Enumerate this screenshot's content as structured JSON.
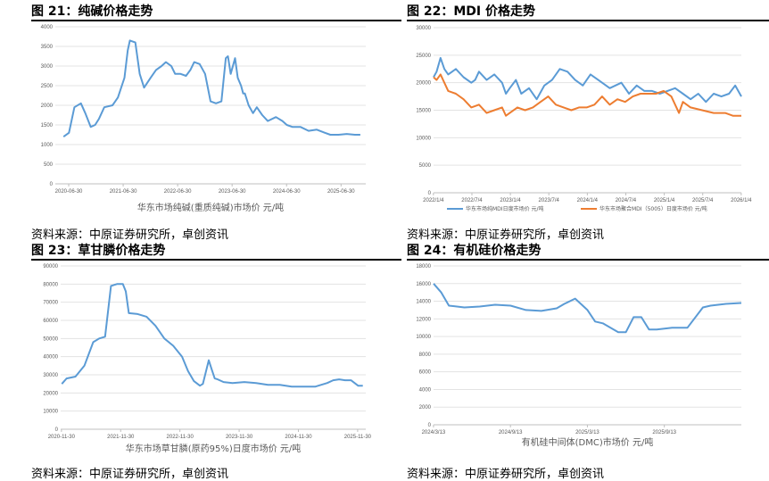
{
  "panels": [
    {
      "title": "图 21：纯碱价格走势",
      "source": "资料来源：中原证券研究所，卓创资讯",
      "caption": "华东市场纯碱(重质纯碱)市场价  元/吨",
      "y_ticks": [
        "0",
        "500",
        "1000",
        "1500",
        "2000",
        "2500",
        "3000",
        "3500",
        "4000"
      ],
      "x_ticks": [
        "2020-06-30",
        "2021-06-30",
        "2022-06-30",
        "2023-06-30",
        "2024-06-30",
        "2025-06-30"
      ]
    },
    {
      "title": "图 22：MDI 价格走势",
      "source": "资料来源：中原证券研究所，卓创资讯",
      "caption": "",
      "y_ticks": [
        "0",
        "5000",
        "10000",
        "15000",
        "20000",
        "25000",
        "30000"
      ],
      "x_ticks": [
        "2022/1/4",
        "2022/7/4",
        "2023/1/4",
        "2023/7/4",
        "2024/1/4",
        "2024/7/4",
        "2025/1/4",
        "2025/7/4",
        "2026/1/4"
      ]
    },
    {
      "title": "图 23：草甘膦价格走势",
      "source": "资料来源：中原证券研究所，卓创资讯",
      "caption": "华东市场草甘膦(原药95%)日度市场价  元/吨",
      "y_ticks": [
        "0",
        "10000",
        "20000",
        "30000",
        "40000",
        "50000",
        "60000",
        "70000",
        "80000",
        "90000"
      ],
      "x_ticks": [
        "2020-11-30",
        "2021-11-30",
        "2022-11-30",
        "2023-11-30",
        "2024-11-30",
        "2025-11-30"
      ]
    },
    {
      "title": "图 24：有机硅价格走势",
      "source": "资料来源：中原证券研究所，卓创资讯",
      "caption": "有机硅中间体(DMC)市场价  元/吨",
      "y_ticks": [
        "0",
        "2000",
        "4000",
        "6000",
        "8000",
        "10000",
        "12000",
        "14000",
        "16000",
        "18000"
      ],
      "x_ticks": [
        "2024/3/13",
        "2024/9/13",
        "2025/3/13",
        "2025/9/13"
      ]
    }
  ],
  "colors": {
    "blue": "#5b9bd5",
    "orange": "#ed7d31"
  },
  "chart_data": [
    {
      "type": "line",
      "title": "",
      "xlabel": "华东市场纯碱(重质纯碱)市场价  元/吨",
      "ylabel": "",
      "x_unit": "year",
      "xlim": [
        2020.25,
        2025.95
      ],
      "ylim": [
        0,
        4000
      ],
      "grid": true,
      "series": [
        {
          "name": "华东市场纯碱(重质纯碱)市场价  元/吨",
          "color": "#5b9bd5",
          "x": [
            2020.4,
            2020.5,
            2020.6,
            2020.72,
            2020.8,
            2020.9,
            2020.98,
            2021.05,
            2021.15,
            2021.3,
            2021.4,
            2021.52,
            2021.58,
            2021.62,
            2021.72,
            2021.8,
            2021.88,
            2022.0,
            2022.1,
            2022.2,
            2022.28,
            2022.38,
            2022.45,
            2022.55,
            2022.65,
            2022.73,
            2022.8,
            2022.9,
            2023.0,
            2023.1,
            2023.2,
            2023.3,
            2023.38,
            2023.42,
            2023.47,
            2023.55,
            2023.6,
            2023.66,
            2023.7,
            2023.73,
            2023.8,
            2023.88,
            2023.95,
            2024.0,
            2024.05,
            2024.15,
            2024.3,
            2024.42,
            2024.5,
            2024.6,
            2024.75,
            2024.9,
            2025.05,
            2025.2,
            2025.3,
            2025.45,
            2025.6,
            2025.75,
            2025.85
          ],
          "y": [
            1200,
            1300,
            1950,
            2050,
            1800,
            1450,
            1500,
            1650,
            1950,
            2000,
            2200,
            2700,
            3400,
            3650,
            3600,
            2800,
            2450,
            2700,
            2900,
            3000,
            3100,
            3000,
            2800,
            2800,
            2750,
            2900,
            3100,
            3050,
            2800,
            2100,
            2050,
            2100,
            3200,
            3250,
            2800,
            3200,
            2700,
            2500,
            2300,
            2300,
            2000,
            1800,
            1950,
            1850,
            1750,
            1600,
            1700,
            1600,
            1500,
            1450,
            1450,
            1350,
            1380,
            1300,
            1250,
            1250,
            1270,
            1250,
            1250
          ]
        }
      ]
    },
    {
      "type": "line",
      "title": "",
      "xlabel": "",
      "ylabel": "",
      "x_unit": "year",
      "xlim": [
        2022.01,
        2026.01
      ],
      "ylim": [
        0,
        30000
      ],
      "grid": true,
      "series": [
        {
          "name": "华东市场纯MDI日度市场价  元/吨",
          "color": "#5b9bd5",
          "x": [
            2022.01,
            2022.05,
            2022.1,
            2022.15,
            2022.2,
            2022.3,
            2022.4,
            2022.5,
            2022.55,
            2022.6,
            2022.7,
            2022.8,
            2022.9,
            2022.95,
            2023.0,
            2023.08,
            2023.15,
            2023.25,
            2023.35,
            2023.45,
            2023.55,
            2023.65,
            2023.75,
            2023.85,
            2023.95,
            2024.05,
            2024.15,
            2024.3,
            2024.45,
            2024.55,
            2024.65,
            2024.75,
            2024.85,
            2024.95,
            2025.05,
            2025.15,
            2025.25,
            2025.35,
            2025.45,
            2025.55,
            2025.65,
            2025.75,
            2025.85,
            2025.93,
            2026.01
          ],
          "y": [
            21000,
            22000,
            24500,
            22500,
            21500,
            22500,
            21000,
            20000,
            20500,
            22000,
            20500,
            21500,
            20000,
            18000,
            19000,
            20500,
            18000,
            19000,
            17000,
            19500,
            20500,
            22500,
            22000,
            20500,
            19500,
            21500,
            20500,
            19000,
            20000,
            18000,
            19500,
            18500,
            18500,
            18000,
            18500,
            19000,
            18000,
            17000,
            18000,
            16500,
            18000,
            17500,
            18000,
            19500,
            17500
          ]
        },
        {
          "name": "华东市场聚合MDI（5005）日度市场价 元/吨",
          "color": "#ed7d31",
          "x": [
            2022.01,
            2022.05,
            2022.1,
            2022.2,
            2022.3,
            2022.4,
            2022.5,
            2022.6,
            2022.7,
            2022.8,
            2022.9,
            2022.95,
            2023.0,
            2023.1,
            2023.2,
            2023.3,
            2023.4,
            2023.5,
            2023.6,
            2023.7,
            2023.8,
            2023.9,
            2024.0,
            2024.1,
            2024.2,
            2024.3,
            2024.4,
            2024.5,
            2024.6,
            2024.7,
            2024.8,
            2024.9,
            2025.0,
            2025.1,
            2025.15,
            2025.2,
            2025.25,
            2025.35,
            2025.5,
            2025.65,
            2025.8,
            2025.9,
            2026.01
          ],
          "y": [
            21000,
            20500,
            21500,
            18500,
            18000,
            17000,
            15500,
            16000,
            14500,
            15000,
            15500,
            14000,
            14500,
            15500,
            15000,
            15500,
            16500,
            17500,
            16000,
            15500,
            15000,
            15500,
            15500,
            16000,
            17500,
            16000,
            17000,
            16500,
            17500,
            18000,
            18000,
            18000,
            18500,
            17500,
            16000,
            14500,
            16500,
            15500,
            15000,
            14500,
            14500,
            14000,
            14000
          ]
        }
      ]
    },
    {
      "type": "line",
      "title": "",
      "xlabel": "华东市场草甘膦(原药95%)日度市场价  元/吨",
      "ylabel": "",
      "x_unit": "year",
      "xlim": [
        2020.9,
        2026.05
      ],
      "ylim": [
        0,
        90000
      ],
      "grid": true,
      "series": [
        {
          "name": "华东市场草甘膦(原药95%)日度市场价  元/吨",
          "color": "#5b9bd5",
          "x": [
            2020.92,
            2021.0,
            2021.15,
            2021.3,
            2021.45,
            2021.55,
            2021.65,
            2021.75,
            2021.85,
            2021.95,
            2022.0,
            2022.05,
            2022.2,
            2022.35,
            2022.5,
            2022.65,
            2022.8,
            2022.95,
            2023.05,
            2023.15,
            2023.25,
            2023.3,
            2023.4,
            2023.45,
            2023.5,
            2023.55,
            2023.65,
            2023.8,
            2024.0,
            2024.2,
            2024.4,
            2024.6,
            2024.8,
            2025.0,
            2025.2,
            2025.4,
            2025.5,
            2025.6,
            2025.7,
            2025.8,
            2025.92,
            2026.0
          ],
          "y": [
            25000,
            28000,
            29000,
            35000,
            48000,
            50000,
            51000,
            79000,
            80000,
            80000,
            76000,
            64000,
            63500,
            62000,
            57000,
            50000,
            46000,
            40000,
            32000,
            26500,
            24000,
            25000,
            38000,
            33000,
            28000,
            27500,
            26000,
            25500,
            26000,
            25500,
            24500,
            24500,
            23500,
            23500,
            23500,
            25500,
            27000,
            27500,
            27000,
            27000,
            24000,
            24000
          ]
        }
      ]
    },
    {
      "type": "line",
      "title": "",
      "xlabel": "有机硅中间体(DMC)市场价  元/吨",
      "ylabel": "",
      "x_unit": "year",
      "xlim": [
        2024.2,
        2026.2
      ],
      "ylim": [
        0,
        18000
      ],
      "grid": true,
      "series": [
        {
          "name": "有机硅中间体(DMC)市场价  元/吨",
          "color": "#5b9bd5",
          "x": [
            2024.2,
            2024.25,
            2024.3,
            2024.4,
            2024.5,
            2024.6,
            2024.7,
            2024.8,
            2024.9,
            2025.0,
            2025.05,
            2025.12,
            2025.2,
            2025.25,
            2025.3,
            2025.4,
            2025.45,
            2025.5,
            2025.55,
            2025.6,
            2025.65,
            2025.75,
            2025.85,
            2025.95,
            2026.0,
            2026.1,
            2026.2
          ],
          "y": [
            16000,
            15000,
            13500,
            13300,
            13400,
            13600,
            13500,
            13000,
            12900,
            13200,
            13700,
            14300,
            13000,
            11700,
            11500,
            10500,
            10500,
            12200,
            12200,
            10800,
            10800,
            11000,
            11000,
            13300,
            13500,
            13700,
            13800
          ]
        }
      ]
    }
  ]
}
